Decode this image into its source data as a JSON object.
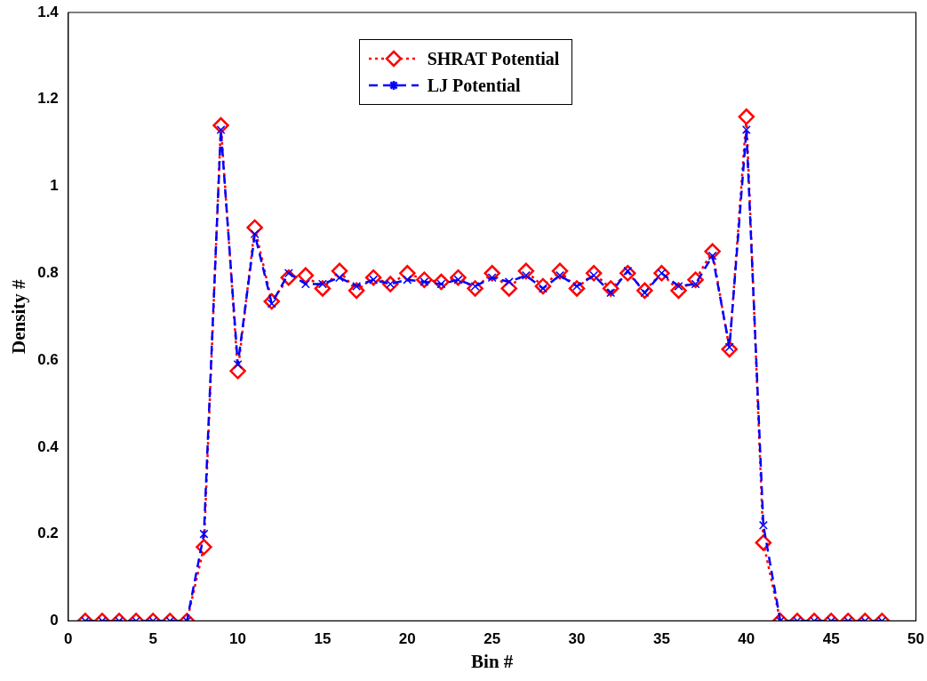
{
  "chart_data": {
    "type": "line",
    "xlabel": "Bin #",
    "ylabel": "Density #",
    "x": [
      1,
      2,
      3,
      4,
      5,
      6,
      7,
      8,
      9,
      10,
      11,
      12,
      13,
      14,
      15,
      16,
      17,
      18,
      19,
      20,
      21,
      22,
      23,
      24,
      25,
      26,
      27,
      28,
      29,
      30,
      31,
      32,
      33,
      34,
      35,
      36,
      37,
      38,
      39,
      40,
      41,
      42,
      43,
      44,
      45,
      46,
      47,
      48
    ],
    "series": [
      {
        "name": "SHRAT Potential",
        "color": "#ff0000",
        "marker": "diamond",
        "line_style": "dotted",
        "values": [
          0,
          0,
          0,
          0,
          0,
          0,
          0,
          0.17,
          1.14,
          0.575,
          0.905,
          0.735,
          0.79,
          0.795,
          0.765,
          0.805,
          0.76,
          0.79,
          0.775,
          0.8,
          0.785,
          0.78,
          0.79,
          0.765,
          0.8,
          0.765,
          0.805,
          0.77,
          0.805,
          0.765,
          0.8,
          0.765,
          0.8,
          0.76,
          0.8,
          0.76,
          0.785,
          0.85,
          0.625,
          1.16,
          0.18,
          0,
          0,
          0,
          0,
          0,
          0,
          0
        ]
      },
      {
        "name": "LJ Potential",
        "color": "#0000ff",
        "marker": "cross",
        "line_style": "dashed",
        "values": [
          0,
          0,
          0,
          0,
          0,
          0,
          0,
          0.2,
          1.13,
          0.59,
          0.89,
          0.73,
          0.8,
          0.775,
          0.775,
          0.79,
          0.77,
          0.785,
          0.775,
          0.785,
          0.78,
          0.775,
          0.785,
          0.77,
          0.79,
          0.78,
          0.795,
          0.765,
          0.795,
          0.77,
          0.795,
          0.755,
          0.805,
          0.755,
          0.8,
          0.77,
          0.775,
          0.84,
          0.63,
          1.13,
          0.22,
          0,
          0,
          0,
          0,
          0,
          0,
          0
        ]
      }
    ],
    "xlim": [
      0,
      50
    ],
    "xticks": [
      0,
      5,
      10,
      15,
      20,
      25,
      30,
      35,
      40,
      45,
      50
    ],
    "ylim": [
      0,
      1.4
    ],
    "yticks": [
      0,
      0.2,
      0.4,
      0.6,
      0.8,
      1,
      1.2,
      1.4
    ],
    "grid": false,
    "legend": "top"
  }
}
